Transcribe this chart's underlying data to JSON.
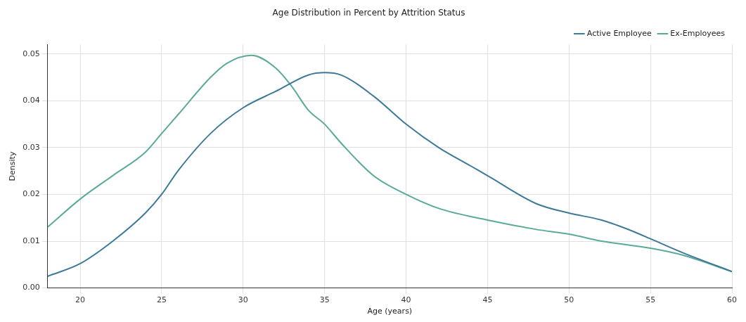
{
  "chart_data": {
    "type": "line",
    "title": "Age Distribution in Percent by Attrition Status",
    "xlabel": "Age (years)",
    "ylabel": "Density",
    "xlim": [
      18,
      60
    ],
    "xticks": [
      20,
      25,
      30,
      35,
      40,
      45,
      50,
      55,
      60
    ],
    "ylim": [
      0,
      0.052
    ],
    "yticks": [
      {
        "value": 0,
        "label": "0.00"
      },
      0.01,
      0.02,
      0.03,
      0.04,
      0.05
    ],
    "grid": true,
    "legend": "top right",
    "marker": "none",
    "series": [
      {
        "name": "Active Employee",
        "color": "#3d7a9a",
        "x": [
          18,
          20,
          22,
          24,
          25,
          26,
          28,
          30,
          32,
          34,
          35,
          36,
          38,
          40,
          42,
          44,
          45,
          48,
          50,
          52,
          54,
          55,
          57,
          60
        ],
        "values": [
          0.0025,
          0.0052,
          0.01,
          0.016,
          0.02,
          0.025,
          0.033,
          0.0385,
          0.042,
          0.0455,
          0.046,
          0.0455,
          0.041,
          0.035,
          0.03,
          0.026,
          0.024,
          0.018,
          0.016,
          0.0145,
          0.012,
          0.0105,
          0.0075,
          0.0035
        ]
      },
      {
        "name": "Ex-Employees",
        "color": "#5aaa9a",
        "x": [
          18,
          20,
          22,
          24,
          25,
          26,
          28,
          29,
          30.5,
          32,
          33,
          34,
          35,
          36,
          38,
          40,
          42,
          45,
          48,
          50,
          52,
          55,
          57,
          60
        ],
        "values": [
          0.013,
          0.019,
          0.024,
          0.029,
          0.033,
          0.037,
          0.045,
          0.048,
          0.0497,
          0.047,
          0.043,
          0.038,
          0.035,
          0.031,
          0.024,
          0.02,
          0.017,
          0.0145,
          0.0125,
          0.0115,
          0.01,
          0.0085,
          0.007,
          0.0035
        ]
      }
    ]
  }
}
